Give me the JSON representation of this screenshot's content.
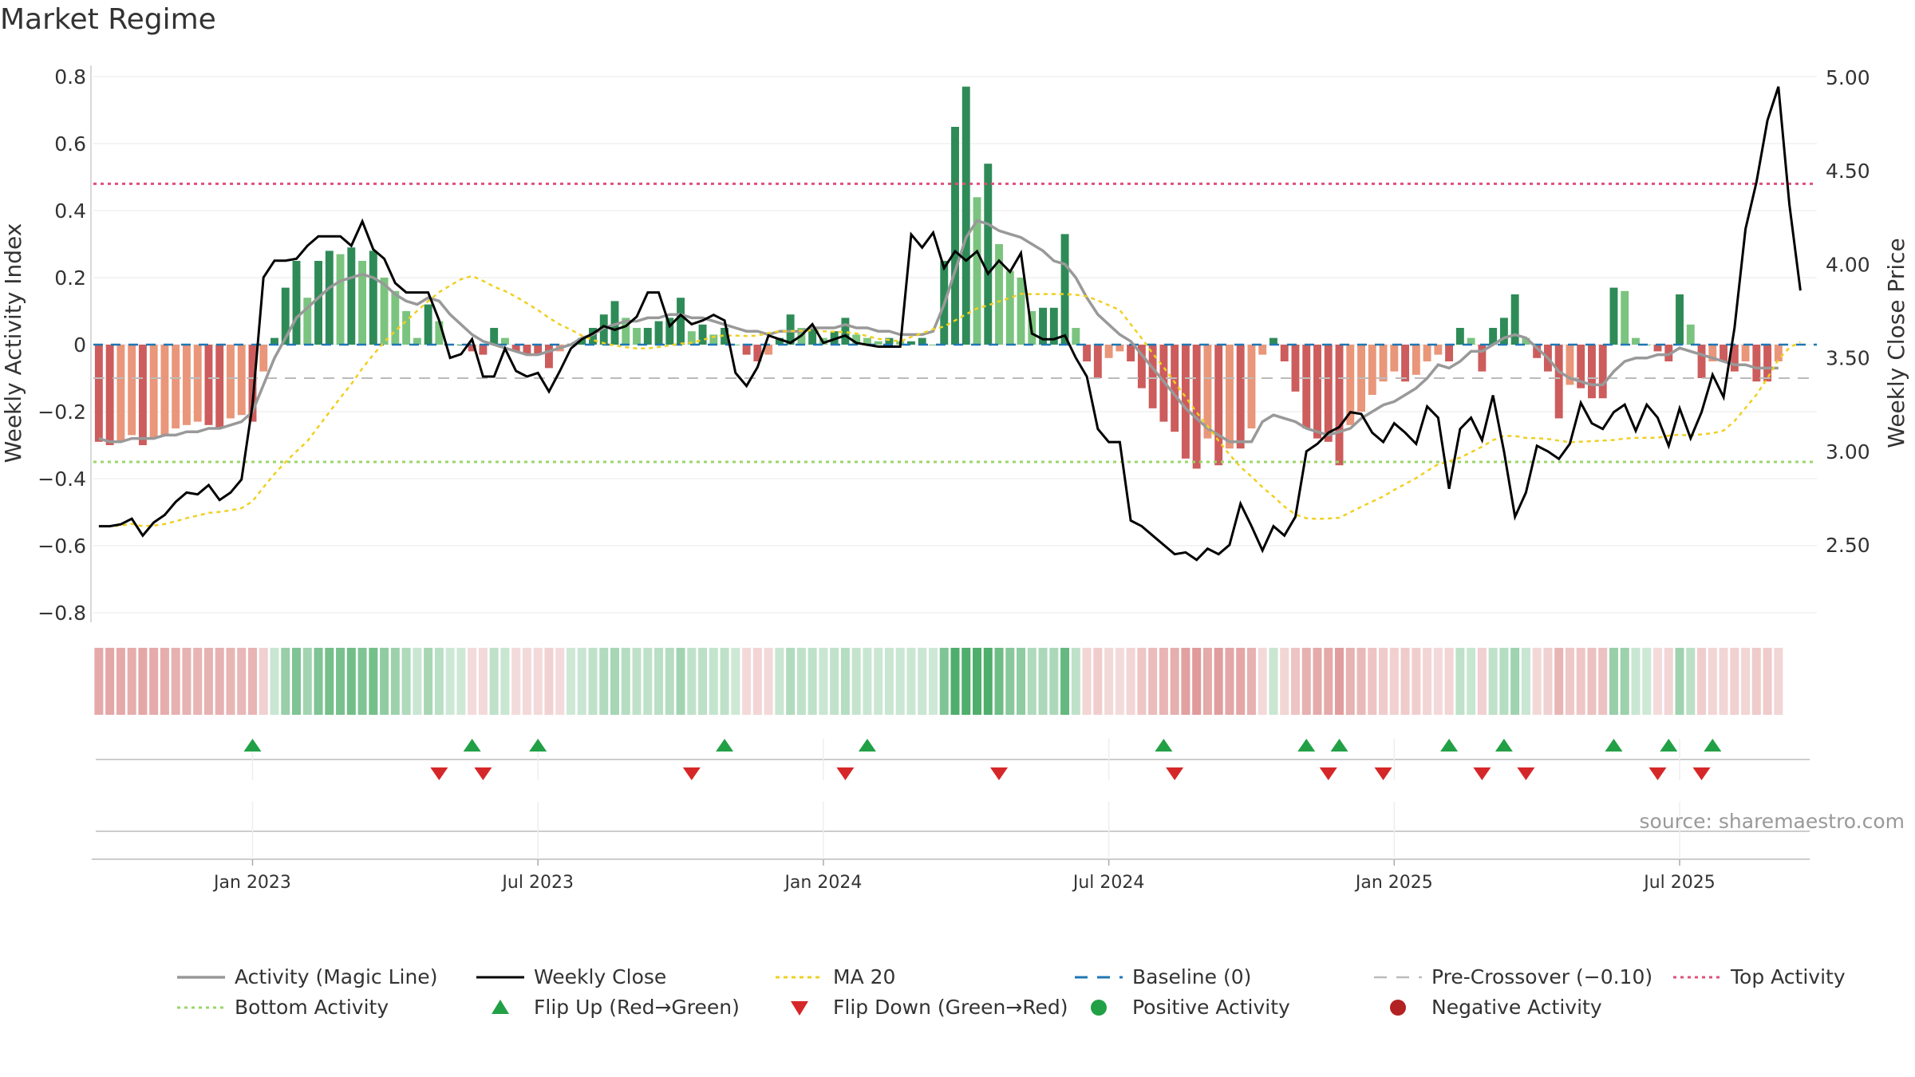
{
  "title": "Market Regime",
  "source": "source: sharemaestro.com",
  "colors": {
    "strong_green": "#2e8b57",
    "light_green": "#7bc47f",
    "strong_red": "#cd5c5c",
    "light_red": "#e9967a",
    "magic_line": "#999999",
    "close": "#000000",
    "ma20": "#f0d020",
    "baseline": "#1f77b4",
    "pre_crossover": "#bbbbbb",
    "top": "#e0507a",
    "bottom": "#9ad66a",
    "flip_up": "#22a046",
    "flip_down": "#d62728"
  },
  "chart_data": {
    "type": "bar",
    "title": "Market Regime",
    "ylabel": "Weekly Activity Index",
    "y2label": "Weekly Close Price",
    "ylim": [
      -0.83,
      0.81
    ],
    "y2lim": [
      2.13,
      5.03
    ],
    "yticks": [
      "0.8",
      "0.6",
      "0.4",
      "0.2",
      "0",
      "−0.2",
      "−0.4",
      "−0.6",
      "−0.8"
    ],
    "ytick_values": [
      0.8,
      0.6,
      0.4,
      0.2,
      0,
      -0.2,
      -0.4,
      -0.6,
      -0.8
    ],
    "y2ticks": [
      "5.00",
      "4.50",
      "4.00",
      "3.50",
      "3.00",
      "2.50"
    ],
    "y2tick_values": [
      5.0,
      4.5,
      4.0,
      3.5,
      3.0,
      2.5
    ],
    "xticks": [
      "Jan 2023",
      "Jul 2023",
      "Jan 2024",
      "Jul 2024",
      "Jan 2025",
      "Jul 2025"
    ],
    "xtick_weeks": [
      14,
      40,
      66,
      92,
      118,
      144
    ],
    "n_weeks": 157,
    "reference_lines": {
      "top_activity": 0.48,
      "bottom_activity": -0.35,
      "pre_crossover": -0.1,
      "baseline": 0
    },
    "activity_index": [
      -0.29,
      -0.3,
      -0.29,
      -0.27,
      -0.3,
      -0.28,
      -0.27,
      -0.25,
      -0.24,
      -0.23,
      -0.24,
      -0.25,
      -0.22,
      -0.21,
      -0.23,
      -0.08,
      0.02,
      0.17,
      0.25,
      0.14,
      0.25,
      0.28,
      0.27,
      0.29,
      0.25,
      0.28,
      0.2,
      0.16,
      0.1,
      0.02,
      0.12,
      0.07,
      0.0,
      0.0,
      -0.02,
      -0.03,
      0.05,
      0.02,
      -0.02,
      -0.03,
      -0.03,
      -0.07,
      -0.02,
      0.0,
      0.02,
      0.05,
      0.09,
      0.13,
      0.08,
      0.05,
      0.05,
      0.07,
      0.08,
      0.14,
      0.04,
      0.06,
      0.03,
      0.05,
      0.0,
      -0.03,
      -0.05,
      -0.03,
      0.02,
      0.09,
      0.05,
      0.05,
      0.02,
      0.04,
      0.08,
      0.03,
      0.02,
      0.01,
      0.02,
      0.01,
      0.01,
      0.02,
      0.0,
      0.25,
      0.65,
      0.77,
      0.44,
      0.54,
      0.3,
      0.22,
      0.2,
      0.1,
      0.11,
      0.11,
      0.33,
      0.05,
      -0.05,
      -0.1,
      -0.04,
      -0.02,
      -0.05,
      -0.13,
      -0.19,
      -0.23,
      -0.26,
      -0.34,
      -0.37,
      -0.28,
      -0.36,
      -0.31,
      -0.31,
      -0.25,
      -0.03,
      0.02,
      -0.05,
      -0.14,
      -0.25,
      -0.28,
      -0.29,
      -0.36,
      -0.24,
      -0.2,
      -0.15,
      -0.11,
      -0.08,
      -0.11,
      -0.09,
      -0.05,
      -0.03,
      -0.05,
      0.05,
      0.02,
      -0.08,
      0.05,
      0.08,
      0.15,
      0.02,
      -0.04,
      -0.08,
      -0.22,
      -0.12,
      -0.13,
      -0.16,
      -0.16,
      0.17,
      0.16,
      0.02,
      0.0,
      -0.02,
      -0.05,
      0.15,
      0.06,
      -0.1,
      -0.05,
      -0.05,
      -0.08,
      -0.05,
      -0.11,
      -0.11,
      -0.05
    ],
    "magic_line": [
      -0.28,
      -0.29,
      -0.29,
      -0.28,
      -0.28,
      -0.28,
      -0.27,
      -0.27,
      -0.26,
      -0.26,
      -0.25,
      -0.25,
      -0.24,
      -0.23,
      -0.2,
      -0.12,
      -0.04,
      0.02,
      0.08,
      0.11,
      0.14,
      0.17,
      0.19,
      0.2,
      0.21,
      0.2,
      0.18,
      0.15,
      0.13,
      0.12,
      0.14,
      0.13,
      0.09,
      0.06,
      0.03,
      0.01,
      0.0,
      -0.01,
      -0.02,
      -0.03,
      -0.03,
      -0.02,
      -0.01,
      0.0,
      0.02,
      0.03,
      0.05,
      0.06,
      0.07,
      0.07,
      0.08,
      0.08,
      0.09,
      0.09,
      0.08,
      0.08,
      0.07,
      0.06,
      0.05,
      0.04,
      0.04,
      0.03,
      0.04,
      0.04,
      0.04,
      0.05,
      0.05,
      0.05,
      0.06,
      0.05,
      0.05,
      0.04,
      0.04,
      0.03,
      0.03,
      0.03,
      0.04,
      0.12,
      0.22,
      0.32,
      0.37,
      0.36,
      0.34,
      0.33,
      0.32,
      0.3,
      0.28,
      0.25,
      0.24,
      0.2,
      0.14,
      0.09,
      0.06,
      0.03,
      0.01,
      -0.03,
      -0.07,
      -0.11,
      -0.15,
      -0.19,
      -0.22,
      -0.25,
      -0.27,
      -0.29,
      -0.29,
      -0.29,
      -0.23,
      -0.21,
      -0.22,
      -0.23,
      -0.25,
      -0.26,
      -0.27,
      -0.26,
      -0.25,
      -0.22,
      -0.2,
      -0.18,
      -0.17,
      -0.15,
      -0.13,
      -0.1,
      -0.06,
      -0.07,
      -0.05,
      -0.02,
      -0.02,
      0.0,
      0.02,
      0.03,
      0.02,
      -0.01,
      -0.04,
      -0.08,
      -0.1,
      -0.11,
      -0.12,
      -0.12,
      -0.08,
      -0.05,
      -0.04,
      -0.04,
      -0.03,
      -0.03,
      -0.01,
      -0.02,
      -0.03,
      -0.04,
      -0.05,
      -0.06,
      -0.06,
      -0.07,
      -0.07,
      -0.07
    ],
    "close": [
      2.6,
      2.6,
      2.61,
      2.64,
      2.55,
      2.62,
      2.66,
      2.73,
      2.78,
      2.77,
      2.82,
      2.74,
      2.78,
      2.85,
      3.25,
      3.93,
      4.02,
      4.02,
      4.03,
      4.1,
      4.15,
      4.15,
      4.15,
      4.1,
      4.23,
      4.08,
      4.03,
      3.9,
      3.85,
      3.85,
      3.85,
      3.7,
      3.5,
      3.52,
      3.6,
      3.4,
      3.4,
      3.55,
      3.43,
      3.4,
      3.42,
      3.32,
      3.43,
      3.55,
      3.6,
      3.63,
      3.67,
      3.65,
      3.67,
      3.72,
      3.85,
      3.85,
      3.67,
      3.73,
      3.68,
      3.7,
      3.73,
      3.7,
      3.42,
      3.35,
      3.45,
      3.62,
      3.6,
      3.58,
      3.62,
      3.68,
      3.58,
      3.6,
      3.62,
      3.58,
      3.57,
      3.56,
      3.56,
      3.56,
      4.16,
      4.09,
      4.17,
      3.98,
      4.07,
      4.02,
      4.07,
      3.95,
      4.02,
      3.96,
      4.06,
      3.63,
      3.6,
      3.6,
      3.62,
      3.5,
      3.4,
      3.12,
      3.05,
      3.05,
      2.63,
      2.6,
      2.55,
      2.5,
      2.45,
      2.46,
      2.42,
      2.48,
      2.45,
      2.5,
      2.72,
      2.6,
      2.47,
      2.6,
      2.55,
      2.65,
      3.0,
      3.04,
      3.1,
      3.13,
      3.21,
      3.2,
      3.1,
      3.05,
      3.15,
      3.1,
      3.04,
      3.24,
      3.18,
      2.8,
      3.12,
      3.18,
      3.06,
      3.3,
      3.0,
      2.65,
      2.78,
      3.03,
      3.0,
      2.96,
      3.04,
      3.26,
      3.15,
      3.12,
      3.21,
      3.25,
      3.11,
      3.25,
      3.18,
      3.03,
      3.23,
      3.07,
      3.21,
      3.41,
      3.29,
      3.66,
      4.19,
      4.44,
      4.77,
      4.95,
      4.32,
      3.86
    ]
  },
  "annotation_names": {
    "magic_line": "Activity (Magic Line)",
    "close": "Weekly Close",
    "ma20": "MA 20"
  },
  "flips": {
    "up_weeks": [
      14,
      34,
      40,
      57,
      70,
      97,
      110,
      113,
      123,
      128,
      138,
      143,
      147
    ],
    "down_weeks": [
      31,
      35,
      54,
      68,
      82,
      98,
      112,
      117,
      126,
      130,
      142,
      146
    ]
  },
  "legend": [
    {
      "key": "magic",
      "label": "Activity (Magic Line)"
    },
    {
      "key": "close",
      "label": "Weekly Close"
    },
    {
      "key": "ma20",
      "label": "MA 20"
    },
    {
      "key": "baseline",
      "label": "Baseline (0)"
    },
    {
      "key": "precross",
      "label": "Pre-Crossover (−0.10)"
    },
    {
      "key": "top",
      "label": "Top Activity"
    },
    {
      "key": "bottom",
      "label": "Bottom Activity"
    },
    {
      "key": "flipup",
      "label": "Flip Up (Red→Green)"
    },
    {
      "key": "flipdown",
      "label": "Flip Down (Green→Red)"
    },
    {
      "key": "pos",
      "label": "Positive Activity"
    },
    {
      "key": "neg",
      "label": "Negative Activity"
    }
  ]
}
